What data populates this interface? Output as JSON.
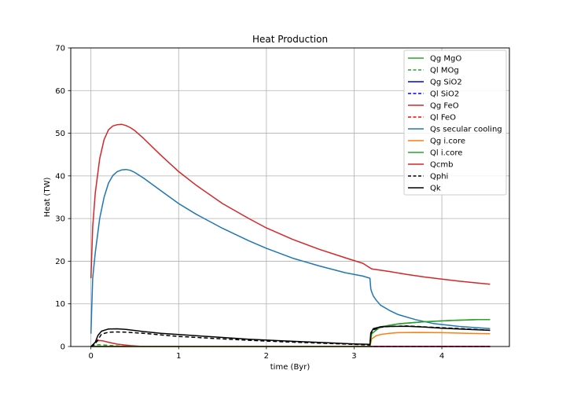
{
  "chart_data": {
    "type": "line",
    "title": "Heat Production",
    "xlabel": "time (Byr)",
    "ylabel": "Heat (TW)",
    "xlim": [
      -0.23,
      4.77
    ],
    "ylim": [
      0,
      70
    ],
    "xticks": [
      0,
      1,
      2,
      3,
      4
    ],
    "yticks": [
      0,
      10,
      20,
      30,
      40,
      50,
      60,
      70
    ],
    "grid": true,
    "legend_position": "top-right",
    "series": [
      {
        "name": "Qg MgO",
        "color": "#2ca02c",
        "style": "solid",
        "x": [
          0,
          3.18,
          3.2,
          3.3,
          3.5,
          3.8,
          4.1,
          4.4,
          4.55
        ],
        "y": [
          0,
          0,
          3.0,
          4.6,
          5.3,
          5.8,
          6.1,
          6.3,
          6.3
        ]
      },
      {
        "name": "Ql MOg",
        "color": "#2ca02c",
        "style": "dashed",
        "x": [
          0,
          0.03,
          0.08,
          0.15,
          0.25,
          0.4,
          0.6,
          4.55
        ],
        "y": [
          0,
          0.2,
          0.4,
          0.35,
          0.2,
          0.05,
          0,
          0
        ]
      },
      {
        "name": "Qg SiO2",
        "color": "#0000ff",
        "style": "solid",
        "x": [
          0,
          4.55
        ],
        "y": [
          0,
          0
        ]
      },
      {
        "name": "Ql SiO2",
        "color": "#0000ff",
        "style": "dashed",
        "x": [
          0,
          4.55
        ],
        "y": [
          0,
          0
        ]
      },
      {
        "name": "Qg FeO",
        "color": "#d62728",
        "style": "solid",
        "x": [
          0,
          0.02,
          0.04,
          0.06,
          0.09,
          0.13,
          0.2,
          0.3,
          0.45,
          0.6,
          4.55
        ],
        "y": [
          0,
          0.3,
          0.8,
          1.2,
          1.4,
          1.35,
          1.0,
          0.55,
          0.2,
          0,
          0
        ]
      },
      {
        "name": "Ql FeO",
        "color": "#ff0000",
        "style": "dashed",
        "x": [
          0,
          4.55
        ],
        "y": [
          0,
          0
        ]
      },
      {
        "name": "Qs secular cooling",
        "color": "#1f77b4",
        "style": "solid",
        "x": [
          0,
          0.02,
          0.05,
          0.1,
          0.15,
          0.2,
          0.25,
          0.3,
          0.35,
          0.4,
          0.45,
          0.5,
          0.6,
          0.8,
          1.0,
          1.2,
          1.5,
          1.8,
          2.0,
          2.3,
          2.6,
          2.9,
          3.1,
          3.18,
          3.19,
          3.2,
          3.22,
          3.25,
          3.3,
          3.4,
          3.5,
          3.7,
          3.9,
          4.2,
          4.55
        ],
        "y": [
          3,
          16,
          22,
          30,
          35,
          38.3,
          40.1,
          41.0,
          41.4,
          41.5,
          41.3,
          40.8,
          39.5,
          36.5,
          33.5,
          31.0,
          27.7,
          24.8,
          23.0,
          20.7,
          18.9,
          17.3,
          16.5,
          16.0,
          13.5,
          12.8,
          11.8,
          10.9,
          9.7,
          8.5,
          7.5,
          6.3,
          5.4,
          4.7,
          4.2
        ]
      },
      {
        "name": "Qg i.core",
        "color": "#ff7f0e",
        "style": "solid",
        "x": [
          0,
          3.18,
          3.2,
          3.25,
          3.3,
          3.4,
          3.5,
          3.7,
          4.0,
          4.3,
          4.55
        ],
        "y": [
          0,
          0,
          1.8,
          2.5,
          2.8,
          3.1,
          3.25,
          3.3,
          3.25,
          3.1,
          3.0
        ]
      },
      {
        "name": "Ql i.core",
        "color": "#2ca02c",
        "style": "solid",
        "x": [
          0,
          3.18,
          3.2,
          3.3,
          3.5,
          3.8,
          4.1,
          4.4,
          4.55
        ],
        "y": [
          0,
          0,
          3.0,
          4.6,
          5.3,
          5.8,
          6.1,
          6.3,
          6.3
        ]
      },
      {
        "name": "Qcmb",
        "color": "#d62728",
        "style": "solid",
        "x": [
          0,
          0.02,
          0.05,
          0.1,
          0.15,
          0.2,
          0.25,
          0.3,
          0.35,
          0.4,
          0.45,
          0.5,
          0.6,
          0.8,
          1.0,
          1.2,
          1.5,
          1.8,
          2.0,
          2.3,
          2.6,
          2.9,
          3.1,
          3.2,
          3.4,
          3.6,
          3.8,
          4.0,
          4.2,
          4.4,
          4.55
        ],
        "y": [
          16,
          28,
          36,
          44,
          48.5,
          50.8,
          51.7,
          52.0,
          52.1,
          51.8,
          51.3,
          50.6,
          48.8,
          44.8,
          41.0,
          37.8,
          33.5,
          30.0,
          27.8,
          25.1,
          22.8,
          20.8,
          19.5,
          18.2,
          17.6,
          16.9,
          16.3,
          15.8,
          15.3,
          14.9,
          14.6
        ]
      },
      {
        "name": "Qphi",
        "color": "#000000",
        "style": "dashed",
        "x": [
          0,
          0.05,
          0.08,
          0.12,
          0.2,
          0.3,
          0.4,
          0.6,
          0.8,
          1.0,
          1.4,
          1.8,
          2.2,
          2.6,
          3.0,
          3.18,
          3.19,
          3.22,
          3.3,
          3.4,
          3.6,
          3.8,
          4.0,
          4.3,
          4.55
        ],
        "y": [
          0,
          0.6,
          1.6,
          2.9,
          3.35,
          3.4,
          3.35,
          3.1,
          2.7,
          2.35,
          1.9,
          1.45,
          1.1,
          0.8,
          0.5,
          0.35,
          3.0,
          3.9,
          4.5,
          4.7,
          4.8,
          4.6,
          4.4,
          4.1,
          3.8
        ]
      },
      {
        "name": "Qk",
        "color": "#000000",
        "style": "solid",
        "x": [
          0,
          0.05,
          0.08,
          0.12,
          0.2,
          0.3,
          0.4,
          0.6,
          0.8,
          1.0,
          1.4,
          1.8,
          2.2,
          2.6,
          3.0,
          3.18,
          3.19,
          3.22,
          3.3,
          3.4,
          3.6,
          3.8,
          4.0,
          4.3,
          4.55
        ],
        "y": [
          0,
          1.0,
          2.6,
          3.6,
          4.1,
          4.15,
          4.0,
          3.5,
          3.1,
          2.8,
          2.25,
          1.7,
          1.3,
          0.95,
          0.6,
          0.5,
          3.2,
          4.2,
          4.6,
          4.7,
          4.75,
          4.55,
          4.3,
          4.0,
          3.8
        ]
      }
    ]
  }
}
